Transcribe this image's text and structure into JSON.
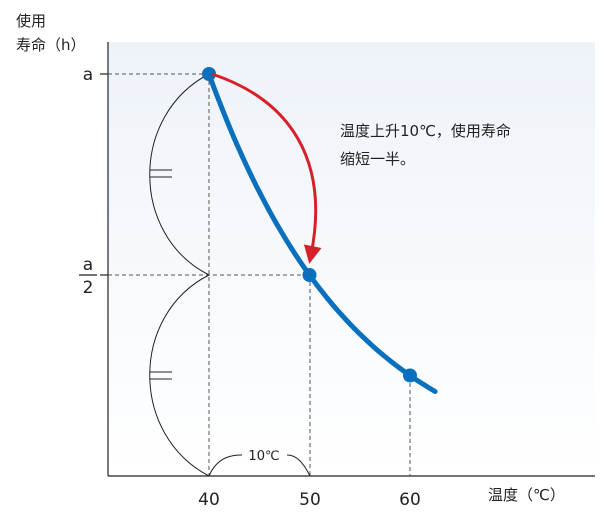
{
  "chart_data": {
    "type": "line",
    "ylabel_line1": "使用",
    "ylabel_line2": "寿命（h）",
    "xlabel": "温度（℃）",
    "y_ticks": {
      "top": "a",
      "mid_num": "a",
      "mid_den": "2"
    },
    "x_ticks": [
      "40",
      "50",
      "60"
    ],
    "series": [
      {
        "points": [
          {
            "x": 40,
            "y": 1.0
          },
          {
            "x": 50,
            "y": 0.5
          },
          {
            "x": 60,
            "y": 0.25
          }
        ]
      }
    ],
    "interval_label": "10℃",
    "annotation_line1": "温度上升10℃，使用寿命",
    "annotation_line2": "缩短一半。",
    "colors": {
      "curve": "#0a70be",
      "arrow": "#d8202a",
      "plot_bg_top": "#eef3f9",
      "plot_bg_bottom": "#ffffff",
      "page_bg": "#e6eef5"
    }
  }
}
